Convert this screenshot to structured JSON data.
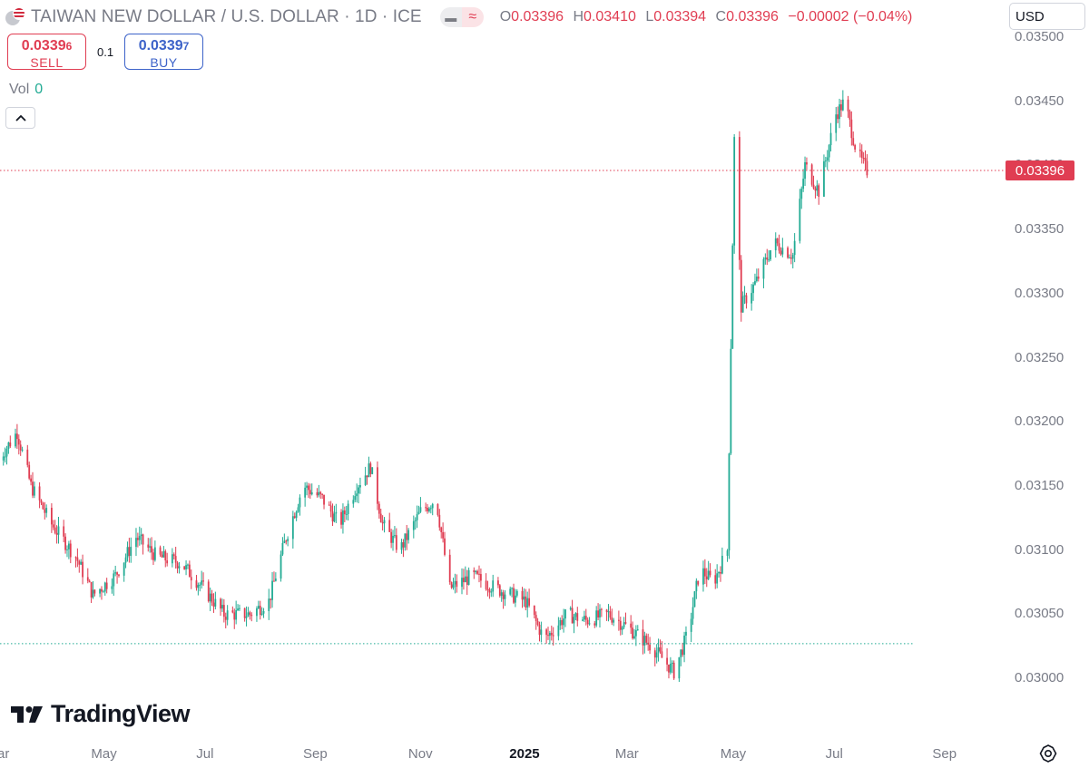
{
  "header": {
    "title": "TAIWAN NEW DOLLAR / U.S. DOLLAR · 1D · ICE",
    "ohlc": {
      "o_label": "O",
      "o_value": "0.03396",
      "h_label": "H",
      "h_value": "0.03410",
      "l_label": "L",
      "l_value": "0.03394",
      "c_label": "C",
      "c_value": "0.03396",
      "change": "−0.00002 (−0.04%)"
    },
    "pill_left_icon": "minus-icon",
    "pill_right_icon": "wave-icon"
  },
  "trade": {
    "sell_price_main": "0.0339",
    "sell_price_small": "6",
    "sell_label": "SELL",
    "spread": "0.1",
    "buy_price_main": "0.0339",
    "buy_price_small": "7",
    "buy_label": "BUY"
  },
  "volume": {
    "label": "Vol",
    "value": "0"
  },
  "currency": "USD",
  "current_price_tag": "0.03396",
  "logo_text": "TradingView",
  "colors": {
    "up": "#22ab94",
    "down": "#e03d52",
    "buy": "#3d63c9",
    "text_muted": "#787b86"
  },
  "chart_data": {
    "type": "candlestick",
    "title": "TAIWAN NEW DOLLAR / U.S. DOLLAR · 1D · ICE",
    "xlabel": "",
    "ylabel": "",
    "ylim": [
      0.0297,
      0.035
    ],
    "y_ticks": [
      "0.03500",
      "0.03450",
      "0.03400",
      "0.03350",
      "0.03300",
      "0.03250",
      "0.03200",
      "0.03150",
      "0.03100",
      "0.03050",
      "0.03000"
    ],
    "x_ticks": [
      "Mar",
      "May",
      "Jul",
      "Sep",
      "Nov",
      "2025",
      "Mar",
      "May",
      "Jul",
      "Sep"
    ],
    "x_range": [
      "2024-03-01",
      "2025-09-30"
    ],
    "last_date": "2025-07-18",
    "current_price": 0.03396,
    "reference_line": 0.03027,
    "grid": false,
    "price_path": [
      [
        "2024-03-01",
        0.0317
      ],
      [
        "2024-03-12",
        0.03192
      ],
      [
        "2024-03-20",
        0.0315
      ],
      [
        "2024-04-01",
        0.0312
      ],
      [
        "2024-04-15",
        0.03095
      ],
      [
        "2024-04-25",
        0.03065
      ],
      [
        "2024-05-08",
        0.0308
      ],
      [
        "2024-05-20",
        0.0311
      ],
      [
        "2024-06-01",
        0.03095
      ],
      [
        "2024-06-15",
        0.0309
      ],
      [
        "2024-06-28",
        0.0307
      ],
      [
        "2024-07-10",
        0.0305
      ],
      [
        "2024-07-25",
        0.0305
      ],
      [
        "2024-08-05",
        0.0306
      ],
      [
        "2024-08-15",
        0.0311
      ],
      [
        "2024-08-25",
        0.0315
      ],
      [
        "2024-09-05",
        0.0314
      ],
      [
        "2024-09-15",
        0.0312
      ],
      [
        "2024-09-25",
        0.0315
      ],
      [
        "2024-10-03",
        0.03165
      ],
      [
        "2024-10-10",
        0.0312
      ],
      [
        "2024-10-20",
        0.031
      ],
      [
        "2024-11-01",
        0.0313
      ],
      [
        "2024-11-10",
        0.0314
      ],
      [
        "2024-11-18",
        0.0307
      ],
      [
        "2024-12-01",
        0.0308
      ],
      [
        "2024-12-15",
        0.0307
      ],
      [
        "2025-01-01",
        0.0306
      ],
      [
        "2025-01-12",
        0.0303
      ],
      [
        "2025-01-25",
        0.0305
      ],
      [
        "2025-02-05",
        0.03045
      ],
      [
        "2025-02-18",
        0.0305
      ],
      [
        "2025-03-01",
        0.0304
      ],
      [
        "2025-03-15",
        0.03025
      ],
      [
        "2025-03-28",
        0.03005
      ],
      [
        "2025-04-05",
        0.03035
      ],
      [
        "2025-04-12",
        0.03085
      ],
      [
        "2025-04-20",
        0.03075
      ],
      [
        "2025-04-28",
        0.031
      ],
      [
        "2025-05-02",
        0.0342
      ],
      [
        "2025-05-06",
        0.0329
      ],
      [
        "2025-05-15",
        0.0331
      ],
      [
        "2025-05-25",
        0.0334
      ],
      [
        "2025-06-05",
        0.0333
      ],
      [
        "2025-06-12",
        0.034
      ],
      [
        "2025-06-20",
        0.0338
      ],
      [
        "2025-06-30",
        0.0344
      ],
      [
        "2025-07-05",
        0.0345
      ],
      [
        "2025-07-12",
        0.0341
      ],
      [
        "2025-07-18",
        0.03396
      ]
    ]
  }
}
